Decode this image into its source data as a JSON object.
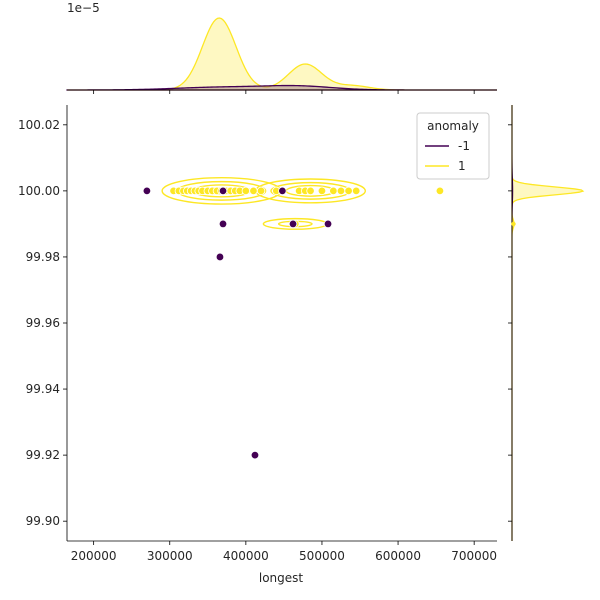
{
  "chart_data": {
    "type": "scatter",
    "variant": "jointplot with kde marginals",
    "xlabel": "longest",
    "ylabel": "",
    "xlim": [
      165000,
      730000
    ],
    "ylim": [
      99.894,
      100.026
    ],
    "x_ticks": [
      200000,
      300000,
      400000,
      500000,
      600000,
      700000
    ],
    "x_tick_labels": [
      "200000",
      "300000",
      "400000",
      "500000",
      "600000",
      "700000"
    ],
    "y_ticks": [
      99.9,
      99.92,
      99.94,
      99.96,
      99.98,
      100.0,
      100.02
    ],
    "y_tick_labels": [
      "99.90",
      "99.92",
      "99.94",
      "99.96",
      "99.98",
      "100.00",
      "100.02"
    ],
    "top_marginal_scale_label": "1e−5",
    "legend": {
      "title": "anomaly",
      "placement": "top-right",
      "entries": [
        {
          "label": "-1",
          "color": "#440154"
        },
        {
          "label": "1",
          "color": "#fde725"
        }
      ]
    },
    "series": [
      {
        "name": "1",
        "color": "#fde725",
        "points": [
          [
            305000,
            100.0
          ],
          [
            312000,
            100.0
          ],
          [
            318000,
            100.0
          ],
          [
            323000,
            100.0
          ],
          [
            328000,
            100.0
          ],
          [
            333000,
            100.0
          ],
          [
            338000,
            100.0
          ],
          [
            343000,
            100.0
          ],
          [
            350000,
            100.0
          ],
          [
            356000,
            100.0
          ],
          [
            362000,
            100.0
          ],
          [
            368000,
            100.0
          ],
          [
            374000,
            100.0
          ],
          [
            380000,
            100.0
          ],
          [
            386000,
            100.0
          ],
          [
            392000,
            100.0
          ],
          [
            400000,
            100.0
          ],
          [
            410000,
            100.0
          ],
          [
            420000,
            100.0
          ],
          [
            440000,
            100.0
          ],
          [
            470000,
            100.0
          ],
          [
            478000,
            100.0
          ],
          [
            485000,
            100.0
          ],
          [
            500000,
            100.0
          ],
          [
            515000,
            100.0
          ],
          [
            525000,
            100.0
          ],
          [
            535000,
            100.0
          ],
          [
            545000,
            100.0
          ],
          [
            655000,
            100.0
          ],
          [
            465000,
            99.99
          ]
        ]
      },
      {
        "name": "-1",
        "color": "#440154",
        "points": [
          [
            270000,
            100.0
          ],
          [
            370000,
            100.0
          ],
          [
            448000,
            100.0
          ],
          [
            370000,
            99.99
          ],
          [
            462000,
            99.99
          ],
          [
            508000,
            99.99
          ],
          [
            366000,
            99.98
          ],
          [
            412000,
            99.92
          ]
        ]
      }
    ],
    "kde_contours": [
      {
        "series": "1",
        "center": [
          368000,
          100.0
        ],
        "radii": [
          [
            78000,
            0.004
          ],
          [
            58000,
            0.0028
          ],
          [
            38000,
            0.0018
          ],
          [
            20000,
            0.001
          ]
        ]
      },
      {
        "series": "1",
        "center": [
          485000,
          100.0
        ],
        "radii": [
          [
            72000,
            0.0036
          ],
          [
            52000,
            0.0025
          ],
          [
            32000,
            0.0016
          ]
        ]
      },
      {
        "series": "1",
        "center": [
          465000,
          99.99
        ],
        "radii": [
          [
            42000,
            0.0016
          ],
          [
            22000,
            0.0008
          ]
        ]
      }
    ],
    "marginal_x_kde": [
      {
        "series": "1",
        "color": "#fde725",
        "components": [
          [
            365000,
            22000,
            1.0
          ],
          [
            478000,
            22000,
            0.36
          ],
          [
            540000,
            22000,
            0.06
          ]
        ]
      },
      {
        "series": "-1",
        "color": "#440154",
        "components": [
          [
            370000,
            60000,
            0.04
          ],
          [
            470000,
            45000,
            0.05
          ]
        ]
      }
    ],
    "marginal_y_kde": [
      {
        "series": "1",
        "color": "#fde725",
        "components": [
          [
            100.0,
            0.0012,
            1.0
          ],
          [
            99.99,
            0.0012,
            0.03
          ]
        ]
      },
      {
        "series": "-1",
        "color": "#440154",
        "components": [
          [
            100.0,
            0.004,
            0.01
          ]
        ]
      }
    ]
  }
}
